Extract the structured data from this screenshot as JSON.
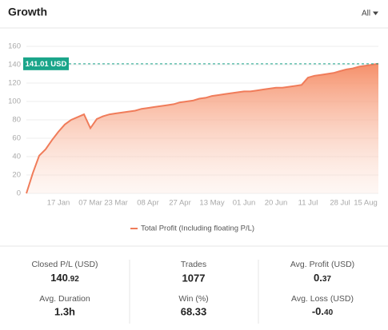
{
  "header": {
    "title": "Growth",
    "filter": "All"
  },
  "chart_data": {
    "type": "area",
    "categories": [
      null,
      null,
      null,
      null,
      null,
      "17 Jan",
      null,
      null,
      null,
      null,
      "07 Mar",
      null,
      null,
      null,
      "23 Mar",
      null,
      null,
      null,
      null,
      "08 Apr",
      null,
      null,
      null,
      null,
      "27 Apr",
      null,
      null,
      null,
      null,
      "13 May",
      null,
      null,
      null,
      null,
      "01 Jun",
      null,
      null,
      null,
      null,
      "20 Jun",
      null,
      null,
      null,
      null,
      "11 Jul",
      null,
      null,
      null,
      null,
      "28 Jul",
      null,
      null,
      null,
      "15 Aug",
      null,
      null
    ],
    "series": [
      {
        "name": "Total Profit (Including floating P/L)",
        "color": "#f07c5a",
        "values": [
          0,
          22,
          41,
          48,
          58,
          67,
          75,
          80,
          83,
          86,
          71,
          81,
          84,
          86,
          87,
          88,
          89,
          90,
          92,
          93,
          94,
          95,
          96,
          97,
          99,
          100,
          101,
          103,
          104,
          106,
          107,
          108,
          109,
          110,
          111,
          111,
          112,
          113,
          114,
          115,
          115,
          116,
          117,
          118,
          126,
          128,
          129,
          130,
          131,
          133,
          135,
          136,
          138,
          139,
          140,
          141.01
        ]
      }
    ],
    "ylim": [
      0,
      160
    ],
    "yticks": [
      0,
      20,
      40,
      60,
      80,
      100,
      120,
      140,
      160
    ],
    "grid": true,
    "annotations": [
      {
        "value": 141.01,
        "label": "141.01 USD",
        "color": "#1aa58a"
      }
    ]
  },
  "stats": [
    {
      "label": "Closed P/L (USD)",
      "value_main": "140",
      "value_fraction": ".92",
      "color": "#1aa58a"
    },
    {
      "label": "Trades",
      "value": "1077"
    },
    {
      "label": "Avg. Profit (USD)",
      "value_main": "0.",
      "value_fraction": "37"
    },
    {
      "label": "Avg. Duration",
      "value": "1.3h"
    },
    {
      "label": "Win (%)",
      "value": "68.33"
    },
    {
      "label": "Avg. Loss (USD)",
      "value_main": "-0.",
      "value_fraction": "40"
    }
  ]
}
